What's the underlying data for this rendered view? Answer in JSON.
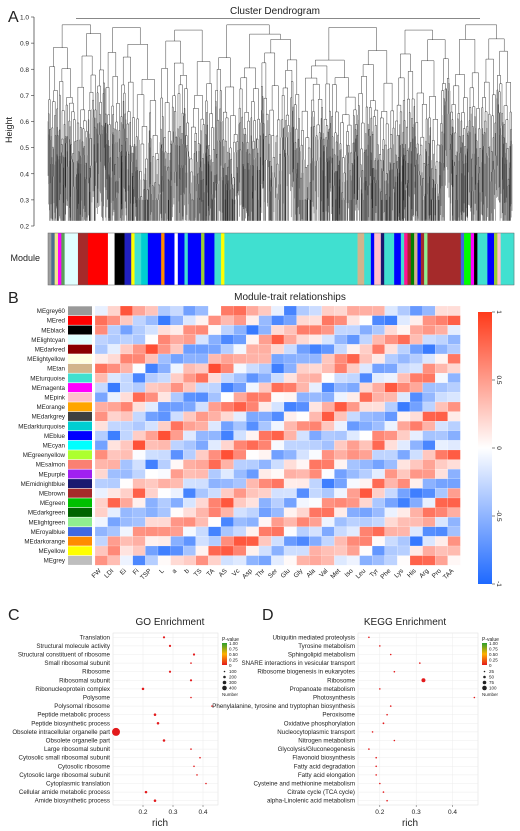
{
  "panelA": {
    "letter": "A",
    "title": "Cluster Dendrogram",
    "ylabel": "Height",
    "yticks": [
      "0.2",
      "0.3",
      "0.4",
      "0.5",
      "0.6",
      "0.7",
      "0.8",
      "0.9",
      "1.0"
    ],
    "module_label": "Module",
    "module_colors": [
      {
        "color": "#9e9e9e",
        "w": 1
      },
      {
        "color": "#4e6e8e",
        "w": 1
      },
      {
        "color": "#f0e68c",
        "w": 1
      },
      {
        "color": "#ff00ff",
        "w": 1
      },
      {
        "color": "#5aa05a",
        "w": 1
      },
      {
        "color": "#e0ffff",
        "w": 1
      },
      {
        "color": "#e0ffff",
        "w": 3
      },
      {
        "color": "#a52a2a",
        "w": 3
      },
      {
        "color": "#ff0000",
        "w": 6
      },
      {
        "color": "#ffffff",
        "w": 2
      },
      {
        "color": "#000000",
        "w": 3
      },
      {
        "color": "#2020c0",
        "w": 2
      },
      {
        "color": "#ffff00",
        "w": 1
      },
      {
        "color": "#40e0d0",
        "w": 2
      },
      {
        "color": "#00ced1",
        "w": 2
      },
      {
        "color": "#0000ff",
        "w": 4
      },
      {
        "color": "#ff8c00",
        "w": 1
      },
      {
        "color": "#0000ff",
        "w": 3
      },
      {
        "color": "#ffffff",
        "w": 1
      },
      {
        "color": "#0000ff",
        "w": 2
      },
      {
        "color": "#40e0d0",
        "w": 1
      },
      {
        "color": "#0000ff",
        "w": 4
      },
      {
        "color": "#9acd32",
        "w": 1
      },
      {
        "color": "#0000ff",
        "w": 3
      },
      {
        "color": "#40e0d0",
        "w": 2
      },
      {
        "color": "#ffff00",
        "w": 1
      },
      {
        "color": "#40e0d0",
        "w": 40
      },
      {
        "color": "#d2b48c",
        "w": 2
      },
      {
        "color": "#40e0d0",
        "w": 2
      },
      {
        "color": "#0000ff",
        "w": 1
      },
      {
        "color": "#ffc0cb",
        "w": 2
      },
      {
        "color": "#191970",
        "w": 1
      },
      {
        "color": "#40e0d0",
        "w": 3
      },
      {
        "color": "#0000ff",
        "w": 2
      },
      {
        "color": "#40e0d0",
        "w": 1
      },
      {
        "color": "#ff1493",
        "w": 1
      },
      {
        "color": "#a52a2a",
        "w": 1
      },
      {
        "color": "#008000",
        "w": 1
      },
      {
        "color": "#d2b48c",
        "w": 1
      },
      {
        "color": "#0000ff",
        "w": 1
      },
      {
        "color": "#a52a2a",
        "w": 1
      },
      {
        "color": "#90ee90",
        "w": 1
      },
      {
        "color": "#a52a2a",
        "w": 10
      },
      {
        "color": "#4169e1",
        "w": 1
      },
      {
        "color": "#00ff00",
        "w": 2
      },
      {
        "color": "#ff00ff",
        "w": 1
      },
      {
        "color": "#000000",
        "w": 1
      },
      {
        "color": "#40e0d0",
        "w": 3
      },
      {
        "color": "#0000ff",
        "w": 2
      },
      {
        "color": "#9acd32",
        "w": 1
      },
      {
        "color": "#ffc0cb",
        "w": 1
      },
      {
        "color": "#40e0d0",
        "w": 4
      }
    ]
  },
  "panelB": {
    "letter": "B",
    "title": "Module-trait relationships",
    "modules": [
      {
        "name": "MEgrey60",
        "color": "#999999"
      },
      {
        "name": "MEred",
        "color": "#ff0000"
      },
      {
        "name": "MEblack",
        "color": "#000000"
      },
      {
        "name": "MElightcyan",
        "color": "#e0ffff"
      },
      {
        "name": "MEdarkred",
        "color": "#8b0000"
      },
      {
        "name": "MElightyellow",
        "color": "#ffffe0"
      },
      {
        "name": "MEtan",
        "color": "#d2b48c"
      },
      {
        "name": "MEturquoise",
        "color": "#40e0d0"
      },
      {
        "name": "MEmagenta",
        "color": "#ff00ff"
      },
      {
        "name": "MEpink",
        "color": "#ffc0cb"
      },
      {
        "name": "MEorange",
        "color": "#ffa500"
      },
      {
        "name": "MEdarkgrey",
        "color": "#404040"
      },
      {
        "name": "MEdarkturquoise",
        "color": "#00ced1"
      },
      {
        "name": "MEblue",
        "color": "#0000ff"
      },
      {
        "name": "MEcyan",
        "color": "#00ffff"
      },
      {
        "name": "MEgreenyellow",
        "color": "#adff2f"
      },
      {
        "name": "MEsalmon",
        "color": "#fa8072"
      },
      {
        "name": "MEpurple",
        "color": "#a020f0"
      },
      {
        "name": "MEmidnightblue",
        "color": "#191970"
      },
      {
        "name": "MEbrown",
        "color": "#a52a2a"
      },
      {
        "name": "MEgreen",
        "color": "#00c000"
      },
      {
        "name": "MEdarkgreen",
        "color": "#006400"
      },
      {
        "name": "MElightgreen",
        "color": "#90ee90"
      },
      {
        "name": "MEroyalblue",
        "color": "#4169e1"
      },
      {
        "name": "MEdarkorange",
        "color": "#ff8c00"
      },
      {
        "name": "MEyellow",
        "color": "#ffff00"
      },
      {
        "name": "MEgrey",
        "color": "#bebebe"
      }
    ],
    "traits": [
      "FW",
      "LDI",
      "Ei",
      "Fi",
      "TSP",
      "L",
      "a",
      "b",
      "TS",
      "TA",
      "AS",
      "Vc",
      "Asp",
      "Thr",
      "Ser",
      "Glu",
      "Gly",
      "Ala",
      "Val",
      "Met",
      "Iso",
      "Leu",
      "Tyr",
      "Phe",
      "Lys",
      "His",
      "Arg",
      "Pro",
      "TAA"
    ],
    "colorbar_ticks": [
      "1",
      "0.5",
      "0",
      "-0.5",
      "-1"
    ]
  },
  "panelC": {
    "letter": "C",
    "title": "GO Enrichment",
    "xlabel": "rich",
    "legend_pvalue_title": "P-value",
    "legend_pvalue_ticks": [
      "1.00",
      "0.75",
      "0.50",
      "0.25",
      "0"
    ],
    "legend_number_items": [
      "100",
      "200",
      "300",
      "400"
    ],
    "legend_number_title": "Number",
    "chart_data": {
      "type": "scatter",
      "title": "GO Enrichment",
      "xlabel": "rich",
      "xticks": [
        0.2,
        0.3,
        0.4
      ],
      "xlim": [
        0.1,
        0.45
      ],
      "categories": [
        "Translation",
        "Structural molecule activity",
        "Structural constituent of ribosome",
        "Small ribosomal subunit",
        "Ribosome",
        "Ribosomal subunit",
        "Ribonucleoprotein complex",
        "Polysome",
        "Polysomal ribosome",
        "Peptide metabolic process",
        "Peptide biosynthetic process",
        "Obsolete intracellular organelle part",
        "Obsolete organelle part",
        "Large ribosomal subunit",
        "Cytosolic small ribosomal subunit",
        "Cytosolic ribosome",
        "Cytosolic large ribosomal subunit",
        "Cytoplasmic translation",
        "Cellular amide metabolic process",
        "Amide biosynthetic process"
      ],
      "x": [
        0.27,
        0.29,
        0.37,
        0.36,
        0.29,
        0.36,
        0.2,
        0.36,
        0.43,
        0.24,
        0.25,
        0.11,
        0.27,
        0.36,
        0.39,
        0.37,
        0.38,
        0.41,
        0.21,
        0.24
      ],
      "number": [
        30,
        30,
        30,
        15,
        30,
        30,
        40,
        15,
        10,
        40,
        40,
        400,
        40,
        15,
        10,
        15,
        10,
        10,
        40,
        40
      ],
      "pvalue": [
        0,
        0,
        0,
        0,
        0,
        0,
        0,
        0,
        0,
        0,
        0,
        0,
        0,
        0,
        0,
        0,
        0,
        0,
        0,
        0
      ]
    }
  },
  "panelD": {
    "letter": "D",
    "title": "KEGG Enrichment",
    "xlabel": "rich",
    "legend_pvalue_title": "P-value",
    "legend_pvalue_ticks": [
      "1.00",
      "0.75",
      "0.50",
      "0.25",
      "0"
    ],
    "legend_number_items": [
      "25",
      "50",
      "75",
      "100"
    ],
    "legend_number_title": "Number",
    "chart_data": {
      "type": "scatter",
      "title": "KEGG Enrichment",
      "xlabel": "rich",
      "xticks": [
        0.2,
        0.3,
        0.4
      ],
      "xlim": [
        0.14,
        0.47
      ],
      "categories": [
        "Ubiquitin mediated proteolysis",
        "Tyrosine metabolism",
        "Sphingolipid metabolism",
        "SNARE interactions in vesicular transport",
        "Ribosome biogenesis in eukaryotes",
        "Ribosome",
        "Propanoate metabolism",
        "Photosynthesis",
        "Phenylalanine, tyrosine and tryptophan biosynthesis",
        "Peroxisome",
        "Oxidative phosphorylation",
        "Nucleocytoplasmic transport",
        "Nitrogen metabolism",
        "Glycolysis/Gluconeogenesis",
        "Flavonoid biosynthesis",
        "Fatty acid degradation",
        "Fatty acid elongation",
        "Cysteine and methionine metabolism",
        "Citrate cycle (TCA cycle)",
        "alpha-Linolenic acid metabolism"
      ],
      "x": [
        0.17,
        0.2,
        0.23,
        0.31,
        0.24,
        0.32,
        0.2,
        0.46,
        0.23,
        0.22,
        0.21,
        0.18,
        0.24,
        0.17,
        0.19,
        0.19,
        0.19,
        0.2,
        0.21,
        0.22
      ],
      "number": [
        12,
        8,
        8,
        8,
        12,
        100,
        8,
        8,
        12,
        12,
        20,
        12,
        8,
        12,
        8,
        8,
        8,
        12,
        12,
        8
      ],
      "pvalue": [
        0,
        0,
        0,
        0,
        0,
        0,
        0,
        0,
        0,
        0,
        0,
        0,
        0,
        0,
        0,
        0,
        0,
        0,
        0,
        0
      ]
    }
  }
}
